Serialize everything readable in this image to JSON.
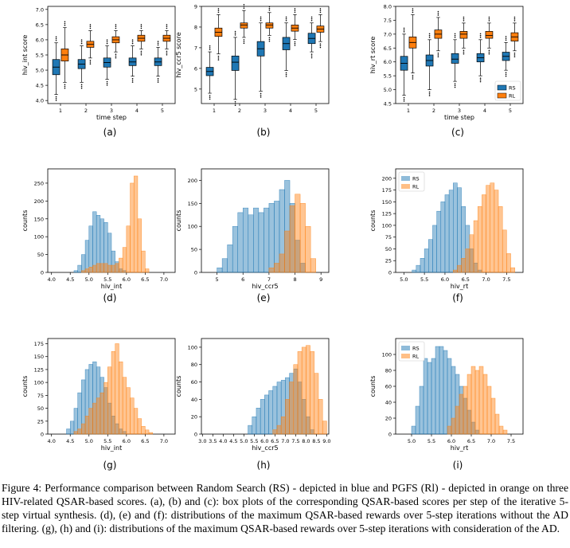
{
  "colors": {
    "rs": "#1f77b4",
    "rl": "#ff7f0e"
  },
  "caption": "Figure 4: Performance comparison between Random Search (RS) - depicted in blue and PGFS (Rl) - depicted in orange on three HIV-related QSAR-based scores. (a), (b) and (c): box plots of the corresponding QSAR-based scores per step of the iterative 5-step virtual synthesis. (d), (e) and (f): distributions of the maximum QSAR-based rewards over 5-step iterations without the AD filtering. (g), (h) and (i): distributions of the maximum QSAR-based rewards over 5-step iterations with consideration of the AD.",
  "chart_data": [
    {
      "panel": "a",
      "subcaption": "(a)",
      "type": "box",
      "xlabel": "time step",
      "ylabel": "hiv_int score",
      "xticks": [
        "1",
        "2",
        "3",
        "4",
        "5"
      ],
      "ylim": [
        3.9,
        7.1
      ],
      "yticks": [
        4.0,
        4.5,
        5.0,
        5.5,
        6.0,
        6.5,
        7.0
      ],
      "series": [
        {
          "key": "rs",
          "boxes": [
            {
              "q1": 4.85,
              "med": 5.1,
              "q3": 5.35,
              "lo": 4.2,
              "hi": 5.9
            },
            {
              "q1": 5.05,
              "med": 5.2,
              "q3": 5.35,
              "lo": 4.6,
              "hi": 5.8
            },
            {
              "q1": 5.1,
              "med": 5.25,
              "q3": 5.4,
              "lo": 4.7,
              "hi": 5.8
            },
            {
              "q1": 5.15,
              "med": 5.27,
              "q3": 5.4,
              "lo": 4.8,
              "hi": 5.8
            },
            {
              "q1": 5.15,
              "med": 5.27,
              "q3": 5.4,
              "lo": 4.8,
              "hi": 5.75
            }
          ]
        },
        {
          "key": "rl",
          "boxes": [
            {
              "q1": 5.3,
              "med": 5.5,
              "q3": 5.7,
              "lo": 4.6,
              "hi": 6.4
            },
            {
              "q1": 5.75,
              "med": 5.85,
              "q3": 5.95,
              "lo": 5.4,
              "hi": 6.3
            },
            {
              "q1": 5.9,
              "med": 6.0,
              "q3": 6.1,
              "lo": 5.6,
              "hi": 6.3
            },
            {
              "q1": 5.95,
              "med": 6.05,
              "q3": 6.15,
              "lo": 5.7,
              "hi": 6.3
            },
            {
              "q1": 5.95,
              "med": 6.05,
              "q3": 6.15,
              "lo": 5.7,
              "hi": 6.3
            }
          ]
        }
      ],
      "yfmt": 1
    },
    {
      "panel": "b",
      "subcaption": "(b)",
      "type": "box",
      "xlabel": "",
      "ylabel": "hiv_ccr5 score",
      "xticks": [
        "1",
        "2",
        "3",
        "4",
        "5"
      ],
      "ylim": [
        4.3,
        9.0
      ],
      "yticks": [
        5,
        6,
        7,
        8,
        9
      ],
      "series": [
        {
          "key": "rs",
          "boxes": [
            {
              "q1": 5.65,
              "med": 5.85,
              "q3": 6.05,
              "lo": 4.8,
              "hi": 6.8
            },
            {
              "q1": 5.9,
              "med": 6.3,
              "q3": 6.6,
              "lo": 4.5,
              "hi": 7.5
            },
            {
              "q1": 6.6,
              "med": 6.95,
              "q3": 7.3,
              "lo": 4.9,
              "hi": 8.2
            },
            {
              "q1": 6.9,
              "med": 7.2,
              "q3": 7.5,
              "lo": 5.9,
              "hi": 8.2
            },
            {
              "q1": 7.2,
              "med": 7.45,
              "q3": 7.7,
              "lo": 6.8,
              "hi": 8.2
            }
          ]
        },
        {
          "key": "rl",
          "boxes": [
            {
              "q1": 7.55,
              "med": 7.75,
              "q3": 7.95,
              "lo": 6.7,
              "hi": 8.6
            },
            {
              "q1": 7.95,
              "med": 8.1,
              "q3": 8.2,
              "lo": 7.5,
              "hi": 8.8
            },
            {
              "q1": 7.95,
              "med": 8.1,
              "q3": 8.2,
              "lo": 7.6,
              "hi": 8.7
            },
            {
              "q1": 7.8,
              "med": 7.95,
              "q3": 8.1,
              "lo": 7.4,
              "hi": 8.6
            },
            {
              "q1": 7.75,
              "med": 7.9,
              "q3": 8.05,
              "lo": 7.3,
              "hi": 8.6
            }
          ]
        }
      ],
      "yfmt": 0
    },
    {
      "panel": "c",
      "subcaption": "(c)",
      "type": "box",
      "xlabel": "time step",
      "ylabel": "hiv_rt score",
      "xticks": [
        "1",
        "2",
        "3",
        "4",
        "5"
      ],
      "ylim": [
        4.5,
        8.0
      ],
      "yticks": [
        4.5,
        5.0,
        5.5,
        6.0,
        6.5,
        7.0,
        7.5,
        8.0
      ],
      "legend": [
        "RS",
        "RL"
      ],
      "series": [
        {
          "key": "rs",
          "boxes": [
            {
              "q1": 5.7,
              "med": 5.95,
              "q3": 6.2,
              "lo": 4.8,
              "hi": 7.0
            },
            {
              "q1": 5.85,
              "med": 6.05,
              "q3": 6.25,
              "lo": 5.0,
              "hi": 6.8
            },
            {
              "q1": 5.95,
              "med": 6.1,
              "q3": 6.3,
              "lo": 5.3,
              "hi": 6.8
            },
            {
              "q1": 6.0,
              "med": 6.15,
              "q3": 6.3,
              "lo": 5.5,
              "hi": 6.8
            },
            {
              "q1": 6.05,
              "med": 6.2,
              "q3": 6.35,
              "lo": 5.7,
              "hi": 6.7
            }
          ]
        },
        {
          "key": "rl",
          "boxes": [
            {
              "q1": 6.5,
              "med": 6.7,
              "q3": 6.9,
              "lo": 5.6,
              "hi": 7.7
            },
            {
              "q1": 6.85,
              "med": 7.0,
              "q3": 7.15,
              "lo": 6.4,
              "hi": 7.6
            },
            {
              "q1": 6.85,
              "med": 7.0,
              "q3": 7.1,
              "lo": 6.5,
              "hi": 7.4
            },
            {
              "q1": 6.85,
              "med": 6.95,
              "q3": 7.1,
              "lo": 6.5,
              "hi": 7.4
            },
            {
              "q1": 6.75,
              "med": 6.9,
              "q3": 7.05,
              "lo": 6.4,
              "hi": 7.4
            }
          ]
        }
      ],
      "yfmt": 1
    },
    {
      "panel": "d",
      "subcaption": "(d)",
      "type": "histogram",
      "xlabel": "hiv_int",
      "ylabel": "counts",
      "xlim": [
        3.9,
        7.3
      ],
      "xticks": [
        4.0,
        4.5,
        5.0,
        5.5,
        6.0,
        6.5,
        7.0
      ],
      "ylim": [
        0,
        290
      ],
      "yticks": [
        0,
        50,
        100,
        150,
        200,
        250
      ],
      "series": [
        {
          "key": "rs",
          "edges": [
            4.6,
            4.7,
            4.8,
            4.9,
            5.0,
            5.1,
            5.2,
            5.3,
            5.4,
            5.5,
            5.6,
            5.7,
            5.8,
            5.9,
            6.0
          ],
          "counts": [
            5,
            20,
            50,
            90,
            130,
            170,
            160,
            150,
            140,
            110,
            60,
            30,
            10,
            5
          ]
        },
        {
          "key": "rl",
          "edges": [
            4.8,
            4.9,
            5.0,
            5.1,
            5.2,
            5.3,
            5.4,
            5.5,
            5.6,
            5.7,
            5.8,
            5.9,
            6.0,
            6.1,
            6.2,
            6.3,
            6.4,
            6.5,
            6.6
          ],
          "counts": [
            5,
            10,
            15,
            20,
            25,
            25,
            25,
            20,
            20,
            25,
            40,
            70,
            130,
            250,
            270,
            150,
            60,
            10
          ]
        }
      ],
      "xfmt": 1
    },
    {
      "panel": "e",
      "subcaption": "(e)",
      "type": "histogram",
      "xlabel": "hiv_ccr5",
      "ylabel": "counts",
      "xlim": [
        4.4,
        9.3
      ],
      "xticks": [
        5,
        6,
        7,
        8,
        9
      ],
      "ylim": [
        0,
        225
      ],
      "yticks": [
        0,
        50,
        100,
        150,
        200
      ],
      "series": [
        {
          "key": "rs",
          "edges": [
            5.0,
            5.2,
            5.4,
            5.6,
            5.8,
            6.0,
            6.2,
            6.4,
            6.6,
            6.8,
            7.0,
            7.2,
            7.4,
            7.6,
            7.8,
            8.0,
            8.2,
            8.4
          ],
          "counts": [
            10,
            30,
            60,
            100,
            130,
            140,
            125,
            140,
            130,
            140,
            150,
            155,
            180,
            200,
            150,
            70,
            20
          ]
        },
        {
          "key": "rl",
          "edges": [
            7.0,
            7.2,
            7.4,
            7.6,
            7.8,
            8.0,
            8.2,
            8.4,
            8.6,
            8.8
          ],
          "counts": [
            10,
            20,
            40,
            90,
            145,
            170,
            150,
            100,
            30
          ]
        }
      ],
      "xfmt": 0
    },
    {
      "panel": "f",
      "subcaption": "(f)",
      "type": "histogram",
      "xlabel": "hiv_rt",
      "ylabel": "counts",
      "xlim": [
        4.8,
        7.9
      ],
      "xticks": [
        5.0,
        5.5,
        6.0,
        6.5,
        7.0,
        7.5
      ],
      "ylim": [
        0,
        220
      ],
      "yticks": [
        0,
        25,
        50,
        75,
        100,
        125,
        150,
        175,
        200
      ],
      "legend": [
        "RS",
        "RL"
      ],
      "series": [
        {
          "key": "rs",
          "edges": [
            5.2,
            5.3,
            5.4,
            5.5,
            5.6,
            5.7,
            5.8,
            5.9,
            6.0,
            6.1,
            6.2,
            6.3,
            6.4,
            6.5,
            6.6,
            6.7,
            6.8,
            6.9
          ],
          "counts": [
            5,
            15,
            30,
            50,
            70,
            100,
            130,
            150,
            165,
            175,
            190,
            180,
            140,
            100,
            50,
            20,
            5
          ]
        },
        {
          "key": "rl",
          "edges": [
            6.2,
            6.3,
            6.4,
            6.5,
            6.6,
            6.7,
            6.8,
            6.9,
            7.0,
            7.1,
            7.2,
            7.3,
            7.4,
            7.5,
            7.6,
            7.7
          ],
          "counts": [
            5,
            15,
            30,
            50,
            80,
            110,
            140,
            165,
            185,
            190,
            175,
            140,
            90,
            40,
            10
          ]
        }
      ],
      "xfmt": 1
    },
    {
      "panel": "g",
      "subcaption": "(g)",
      "type": "histogram",
      "xlabel": "hiv_int",
      "ylabel": "counts",
      "xlim": [
        3.9,
        7.3
      ],
      "xticks": [
        4.0,
        4.5,
        5.0,
        5.5,
        6.0,
        6.5,
        7.0
      ],
      "ylim": [
        0,
        185
      ],
      "yticks": [
        0,
        25,
        50,
        75,
        100,
        125,
        150,
        175
      ],
      "series": [
        {
          "key": "rs",
          "edges": [
            4.4,
            4.5,
            4.6,
            4.7,
            4.8,
            4.9,
            5.0,
            5.1,
            5.2,
            5.3,
            5.4,
            5.5,
            5.6,
            5.7,
            5.8,
            5.9,
            6.0
          ],
          "counts": [
            10,
            25,
            50,
            80,
            105,
            125,
            135,
            140,
            130,
            110,
            90,
            60,
            35,
            20,
            10,
            5
          ]
        },
        {
          "key": "rl",
          "edges": [
            4.6,
            4.7,
            4.8,
            4.9,
            5.0,
            5.1,
            5.2,
            5.3,
            5.4,
            5.5,
            5.6,
            5.7,
            5.8,
            5.9,
            6.0,
            6.1,
            6.2,
            6.3,
            6.4,
            6.5,
            6.6,
            6.7
          ],
          "counts": [
            5,
            10,
            20,
            35,
            50,
            60,
            70,
            80,
            100,
            130,
            160,
            175,
            140,
            110,
            90,
            70,
            50,
            30,
            15,
            8,
            3
          ]
        }
      ],
      "xfmt": 1
    },
    {
      "panel": "h",
      "subcaption": "(h)",
      "type": "histogram",
      "xlabel": "hiv_ccr5",
      "ylabel": "counts",
      "xlim": [
        2.95,
        9.1
      ],
      "xticks": [
        3.0,
        3.5,
        4.0,
        4.5,
        5.0,
        5.5,
        6.0,
        6.5,
        7.0,
        7.5,
        8.0,
        8.5,
        9.0
      ],
      "ylim": [
        0,
        110
      ],
      "yticks": [
        0,
        20,
        40,
        60,
        80,
        100
      ],
      "series": [
        {
          "key": "rs",
          "edges": [
            5.2,
            5.4,
            5.6,
            5.8,
            6.0,
            6.2,
            6.4,
            6.6,
            6.8,
            7.0,
            7.2,
            7.4,
            7.6,
            7.8,
            8.0,
            8.2,
            8.4
          ],
          "counts": [
            10,
            20,
            30,
            40,
            45,
            50,
            55,
            60,
            62,
            65,
            70,
            75,
            60,
            40,
            20,
            5
          ]
        },
        {
          "key": "rl",
          "edges": [
            6.4,
            6.6,
            6.8,
            7.0,
            7.2,
            7.4,
            7.6,
            7.8,
            8.0,
            8.2,
            8.4,
            8.6,
            8.8,
            9.0
          ],
          "counts": [
            5,
            10,
            20,
            40,
            60,
            80,
            95,
            100,
            102,
            95,
            70,
            40,
            15
          ]
        }
      ],
      "xfmt": 1
    },
    {
      "panel": "i",
      "subcaption": "(i)",
      "type": "histogram",
      "xlabel": "hiv_rt",
      "ylabel": "counts",
      "xlim": [
        4.6,
        7.8
      ],
      "xticks": [
        5.0,
        5.5,
        6.0,
        6.5,
        7.0,
        7.5
      ],
      "ylim": [
        0,
        120
      ],
      "yticks": [
        0,
        20,
        40,
        60,
        80,
        100
      ],
      "legend": [
        "RS",
        "RL"
      ],
      "series": [
        {
          "key": "rs",
          "edges": [
            5.0,
            5.1,
            5.2,
            5.3,
            5.4,
            5.5,
            5.6,
            5.7,
            5.8,
            5.9,
            6.0,
            6.1,
            6.2,
            6.3,
            6.4,
            6.5,
            6.6,
            6.7
          ],
          "counts": [
            10,
            35,
            60,
            95,
            90,
            95,
            110,
            110,
            105,
            95,
            85,
            75,
            60,
            45,
            30,
            15,
            5
          ]
        },
        {
          "key": "rl",
          "edges": [
            5.9,
            6.0,
            6.1,
            6.2,
            6.3,
            6.4,
            6.5,
            6.6,
            6.7,
            6.8,
            6.9,
            7.0,
            7.1,
            7.2,
            7.3,
            7.4
          ],
          "counts": [
            10,
            20,
            35,
            50,
            60,
            75,
            85,
            80,
            85,
            75,
            60,
            45,
            25,
            10,
            5
          ]
        }
      ],
      "xfmt": 1
    }
  ]
}
